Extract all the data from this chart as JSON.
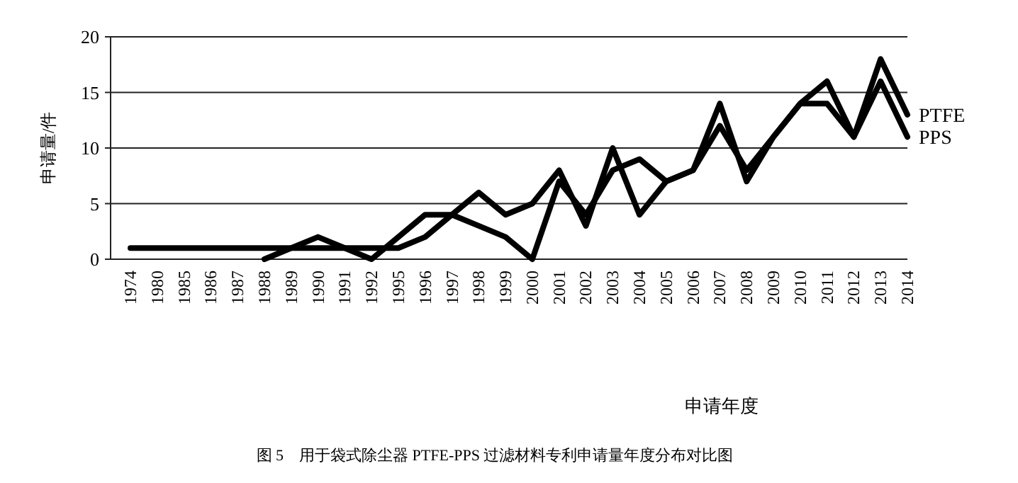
{
  "chart_data": {
    "type": "line",
    "title": "图 5　用于袋式除尘器 PTFE-PPS 过滤材料专利申请量年度分布对比图",
    "xlabel": "申请年度",
    "ylabel": "申请量/件",
    "categories": [
      "1974",
      "1980",
      "1985",
      "1986",
      "1987",
      "1988",
      "1989",
      "1990",
      "1991",
      "1992",
      "1995",
      "1996",
      "1997",
      "1998",
      "1999",
      "2000",
      "2001",
      "2002",
      "2003",
      "2004",
      "2005",
      "2006",
      "2007",
      "2008",
      "2009",
      "2010",
      "2011",
      "2012",
      "2013",
      "2014"
    ],
    "series": [
      {
        "name": "PTFE",
        "color": "#000000",
        "values": [
          1,
          1,
          1,
          1,
          1,
          1,
          1,
          2,
          1,
          0,
          2,
          4,
          4,
          6,
          4,
          5,
          8,
          3,
          10,
          4,
          7,
          8,
          14,
          7,
          11,
          14,
          16,
          11,
          18,
          13
        ]
      },
      {
        "name": "PPS",
        "color": "#000000",
        "values": [
          null,
          null,
          null,
          null,
          null,
          0,
          1,
          1,
          1,
          1,
          1,
          2,
          4,
          3,
          2,
          0,
          7,
          4,
          8,
          9,
          7,
          8,
          12,
          8,
          11,
          14,
          14,
          11,
          16,
          11
        ]
      }
    ],
    "ylim": [
      0,
      20
    ],
    "yticks": [
      0,
      5,
      10,
      15,
      20
    ],
    "grid": "y",
    "line_style": "solid",
    "marker": "none"
  }
}
